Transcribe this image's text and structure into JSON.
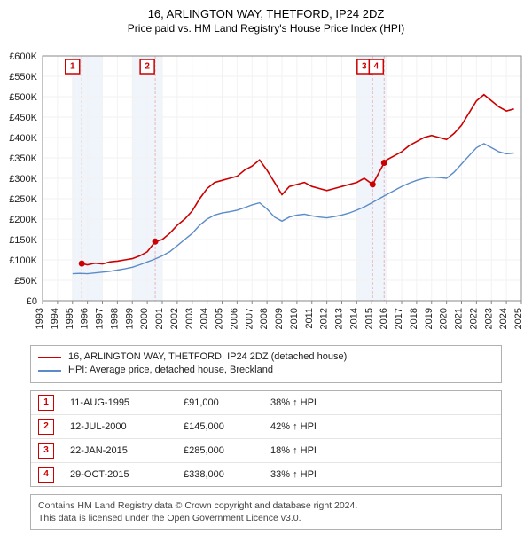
{
  "title_line1": "16, ARLINGTON WAY, THETFORD, IP24 2DZ",
  "title_line2": "Price paid vs. HM Land Registry's House Price Index (HPI)",
  "chart": {
    "type": "line",
    "background": "#ffffff",
    "grid_color": "#f2f2f2",
    "axis_color": "#888888",
    "tick_color": "#888888",
    "text_color": "#222222",
    "axis_fontsize": 11,
    "xlim": [
      1993,
      2025
    ],
    "ylim": [
      0,
      600000
    ],
    "ytick_step": 50000,
    "ylabel_prefix": "£",
    "ylabel_suffix": "K",
    "xticks": [
      1993,
      1994,
      1995,
      1996,
      1997,
      1998,
      1999,
      2000,
      2001,
      2002,
      2003,
      2004,
      2005,
      2006,
      2007,
      2008,
      2009,
      2010,
      2011,
      2012,
      2013,
      2014,
      2015,
      2016,
      2017,
      2018,
      2019,
      2020,
      2021,
      2022,
      2023,
      2024,
      2025
    ],
    "yticks": [
      0,
      50000,
      100000,
      150000,
      200000,
      250000,
      300000,
      350000,
      400000,
      450000,
      500000,
      550000,
      600000
    ],
    "banded_years": [
      1995,
      1996,
      1999,
      2000,
      2014,
      2015
    ],
    "band_color": "#f0f4fb",
    "vlines": [
      {
        "x": 1995.62,
        "color": "#e6b8b8"
      },
      {
        "x": 2000.53,
        "color": "#e6b8b8"
      },
      {
        "x": 2015.06,
        "color": "#e6b8b8"
      },
      {
        "x": 2015.83,
        "color": "#e6b8b8"
      }
    ],
    "series_subject": {
      "color": "#cc0000",
      "stroke_width": 1.6,
      "points": [
        [
          1995.62,
          91000
        ],
        [
          1996,
          88000
        ],
        [
          1996.5,
          92000
        ],
        [
          1997,
          90000
        ],
        [
          1997.5,
          95000
        ],
        [
          1998,
          97000
        ],
        [
          1998.5,
          100000
        ],
        [
          1999,
          103000
        ],
        [
          1999.5,
          110000
        ],
        [
          2000,
          120000
        ],
        [
          2000.53,
          145000
        ],
        [
          2001,
          150000
        ],
        [
          2001.5,
          165000
        ],
        [
          2002,
          185000
        ],
        [
          2002.5,
          200000
        ],
        [
          2003,
          220000
        ],
        [
          2003.5,
          250000
        ],
        [
          2004,
          275000
        ],
        [
          2004.5,
          290000
        ],
        [
          2005,
          295000
        ],
        [
          2005.5,
          300000
        ],
        [
          2006,
          305000
        ],
        [
          2006.5,
          320000
        ],
        [
          2007,
          330000
        ],
        [
          2007.5,
          345000
        ],
        [
          2008,
          320000
        ],
        [
          2008.5,
          290000
        ],
        [
          2009,
          260000
        ],
        [
          2009.5,
          280000
        ],
        [
          2010,
          285000
        ],
        [
          2010.5,
          290000
        ],
        [
          2011,
          280000
        ],
        [
          2011.5,
          275000
        ],
        [
          2012,
          270000
        ],
        [
          2012.5,
          275000
        ],
        [
          2013,
          280000
        ],
        [
          2013.5,
          285000
        ],
        [
          2014,
          290000
        ],
        [
          2014.5,
          300000
        ],
        [
          2015.06,
          285000
        ],
        [
          2015.83,
          338000
        ],
        [
          2016,
          345000
        ],
        [
          2016.5,
          355000
        ],
        [
          2017,
          365000
        ],
        [
          2017.5,
          380000
        ],
        [
          2018,
          390000
        ],
        [
          2018.5,
          400000
        ],
        [
          2019,
          405000
        ],
        [
          2019.5,
          400000
        ],
        [
          2020,
          395000
        ],
        [
          2020.5,
          410000
        ],
        [
          2021,
          430000
        ],
        [
          2021.5,
          460000
        ],
        [
          2022,
          490000
        ],
        [
          2022.5,
          505000
        ],
        [
          2023,
          490000
        ],
        [
          2023.5,
          475000
        ],
        [
          2024,
          465000
        ],
        [
          2024.5,
          470000
        ]
      ],
      "sale_markers": [
        {
          "x": 1995.62,
          "y": 91000
        },
        {
          "x": 2000.53,
          "y": 145000
        },
        {
          "x": 2015.06,
          "y": 285000
        },
        {
          "x": 2015.83,
          "y": 338000
        }
      ]
    },
    "series_hpi": {
      "color": "#5b8bc9",
      "stroke_width": 1.4,
      "points": [
        [
          1995,
          66000
        ],
        [
          1995.5,
          67000
        ],
        [
          1996,
          66000
        ],
        [
          1996.5,
          68000
        ],
        [
          1997,
          70000
        ],
        [
          1997.5,
          72000
        ],
        [
          1998,
          75000
        ],
        [
          1998.5,
          78000
        ],
        [
          1999,
          82000
        ],
        [
          1999.5,
          88000
        ],
        [
          2000,
          95000
        ],
        [
          2000.5,
          102000
        ],
        [
          2001,
          110000
        ],
        [
          2001.5,
          120000
        ],
        [
          2002,
          135000
        ],
        [
          2002.5,
          150000
        ],
        [
          2003,
          165000
        ],
        [
          2003.5,
          185000
        ],
        [
          2004,
          200000
        ],
        [
          2004.5,
          210000
        ],
        [
          2005,
          215000
        ],
        [
          2005.5,
          218000
        ],
        [
          2006,
          222000
        ],
        [
          2006.5,
          228000
        ],
        [
          2007,
          235000
        ],
        [
          2007.5,
          240000
        ],
        [
          2008,
          225000
        ],
        [
          2008.5,
          205000
        ],
        [
          2009,
          195000
        ],
        [
          2009.5,
          205000
        ],
        [
          2010,
          210000
        ],
        [
          2010.5,
          212000
        ],
        [
          2011,
          208000
        ],
        [
          2011.5,
          205000
        ],
        [
          2012,
          203000
        ],
        [
          2012.5,
          206000
        ],
        [
          2013,
          210000
        ],
        [
          2013.5,
          215000
        ],
        [
          2014,
          222000
        ],
        [
          2014.5,
          230000
        ],
        [
          2015,
          240000
        ],
        [
          2015.5,
          250000
        ],
        [
          2016,
          260000
        ],
        [
          2016.5,
          270000
        ],
        [
          2017,
          280000
        ],
        [
          2017.5,
          288000
        ],
        [
          2018,
          295000
        ],
        [
          2018.5,
          300000
        ],
        [
          2019,
          303000
        ],
        [
          2019.5,
          302000
        ],
        [
          2020,
          300000
        ],
        [
          2020.5,
          315000
        ],
        [
          2021,
          335000
        ],
        [
          2021.5,
          355000
        ],
        [
          2022,
          375000
        ],
        [
          2022.5,
          385000
        ],
        [
          2023,
          375000
        ],
        [
          2023.5,
          365000
        ],
        [
          2024,
          360000
        ],
        [
          2024.5,
          362000
        ]
      ]
    },
    "top_markers": [
      {
        "n": "1",
        "x": 1995.0
      },
      {
        "n": "2",
        "x": 2000.0
      },
      {
        "n": "3",
        "x": 2014.5
      },
      {
        "n": "4",
        "x": 2015.3
      }
    ]
  },
  "legend": {
    "row1": {
      "color": "#cc0000",
      "label": "16, ARLINGTON WAY, THETFORD, IP24 2DZ (detached house)"
    },
    "row2": {
      "color": "#5b8bc9",
      "label": "HPI: Average price, detached house, Breckland"
    }
  },
  "events": [
    {
      "n": "1",
      "date": "11-AUG-1995",
      "price": "£91,000",
      "pct": "38% ↑ HPI"
    },
    {
      "n": "2",
      "date": "12-JUL-2000",
      "price": "£145,000",
      "pct": "42% ↑ HPI"
    },
    {
      "n": "3",
      "date": "22-JAN-2015",
      "price": "£285,000",
      "pct": "18% ↑ HPI"
    },
    {
      "n": "4",
      "date": "29-OCT-2015",
      "price": "£338,000",
      "pct": "33% ↑ HPI"
    }
  ],
  "license_line1": "Contains HM Land Registry data © Crown copyright and database right 2024.",
  "license_line2": "This data is licensed under the Open Government Licence v3.0."
}
